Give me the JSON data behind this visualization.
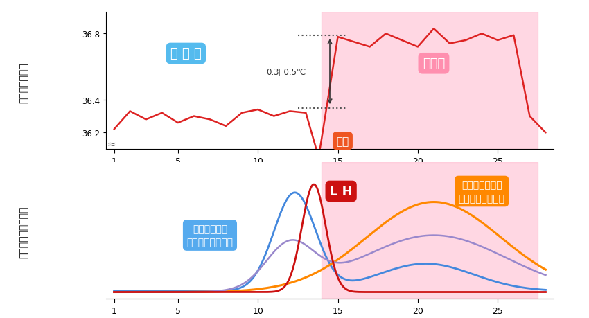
{
  "fig_width": 8.5,
  "fig_height": 4.6,
  "dpi": 100,
  "bg_color": "#ffffff",
  "pink_bg": "#ffb0c8",
  "ovulation_day": 14,
  "last_day": 27.5,
  "temp_x": [
    1,
    2,
    3,
    4,
    5,
    6,
    7,
    8,
    9,
    10,
    11,
    12,
    13,
    13.8,
    15,
    16,
    17,
    18,
    19,
    20,
    21,
    22,
    23,
    24,
    25,
    26,
    27,
    28
  ],
  "temp_y": [
    36.22,
    36.33,
    36.28,
    36.32,
    36.26,
    36.3,
    36.28,
    36.24,
    36.32,
    36.34,
    36.3,
    36.33,
    36.32,
    36.05,
    36.78,
    36.75,
    36.72,
    36.8,
    36.76,
    36.72,
    36.83,
    36.74,
    36.76,
    36.8,
    36.76,
    36.79,
    36.3,
    36.2
  ],
  "temp_color": "#dd2222",
  "temp_linewidth": 1.8,
  "yticks_top": [
    36.2,
    36.4,
    36.8
  ],
  "ytick_labels_top": [
    "36.2",
    "36.4",
    "36.8"
  ],
  "xticks": [
    1,
    5,
    10,
    15,
    20,
    25
  ],
  "top_ylabel": "基礎体温の変化",
  "bottom_ylabel": "女性ホルモンの変化",
  "low_temp_label": "低 温 期",
  "high_temp_label": "高温期",
  "ovulation_label": "排卵",
  "temp_diff_label": "0.3～0.5℃",
  "estrogen_label": "エストロゲン\n（卵胞ホルモン）",
  "LH_label": "L H",
  "progesterone_label": "プロゲステロン\n（黄体ホルモン）",
  "estrogen_color": "#4488dd",
  "LH_color": "#cc1111",
  "progesterone_color": "#ff8800",
  "FSH_color": "#9988cc",
  "low_temp_box_color": "#55bbee",
  "high_temp_box_color": "#ff88aa",
  "ovulation_box_color": "#ee5522",
  "LH_box_color": "#cc1111",
  "progesterone_box_color": "#ff8800",
  "estrogen_box_color": "#55aaee"
}
